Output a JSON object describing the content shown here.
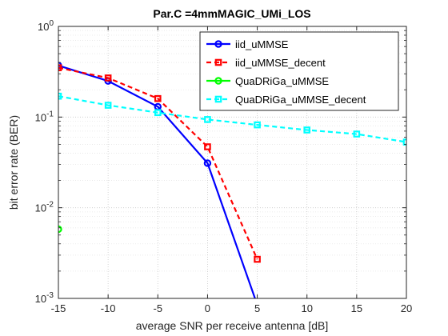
{
  "chart_data": {
    "type": "line",
    "title": "Par.C =4mmMAGIC_UMi_LOS",
    "xlabel": "average SNR per receive antenna [dB]",
    "ylabel": "bit error rate (BER)",
    "xlim": [
      -15,
      20
    ],
    "ylim": [
      0.001,
      1
    ],
    "yscale": "log",
    "grid": "on (major and minor, dotted)",
    "legend_position": "top-right",
    "x_ticks": [
      -15,
      -10,
      -5,
      0,
      5,
      10,
      15,
      20
    ],
    "x_tick_labels": [
      "-15",
      "-10",
      "-5",
      "0",
      "5",
      "10",
      "15",
      "20"
    ],
    "y_ticks": [
      0.001,
      0.01,
      0.1,
      1
    ],
    "y_tick_labels": [
      {
        "base": "10",
        "exp": "-3"
      },
      {
        "base": "10",
        "exp": "-2"
      },
      {
        "base": "10",
        "exp": "-1"
      },
      {
        "base": "10",
        "exp": "0"
      }
    ],
    "series": [
      {
        "name": "iid_uMMSE",
        "color": "#0000ff",
        "line_style": "solid",
        "marker": "circle",
        "x": [
          -15,
          -10,
          -5,
          0,
          5
        ],
        "y": [
          0.37,
          0.25,
          0.13,
          0.031,
          0.00085
        ]
      },
      {
        "name": "iid_uMMSE_decent",
        "color": "#ff0000",
        "line_style": "dashed",
        "marker": "square",
        "x": [
          -15,
          -10,
          -5,
          0,
          5
        ],
        "y": [
          0.35,
          0.27,
          0.16,
          0.047,
          0.0027
        ]
      },
      {
        "name": "QuaDRiGa_uMMSE",
        "color": "#00ff00",
        "line_style": "solid",
        "marker": "circle",
        "x": [
          -15
        ],
        "y": [
          0.0058
        ]
      },
      {
        "name": "QuaDRiGa_uMMSE_decent",
        "color": "#00ffff",
        "line_style": "dashed",
        "marker": "square",
        "x": [
          -15,
          -10,
          -5,
          0,
          5,
          10,
          15,
          20
        ],
        "y": [
          0.17,
          0.135,
          0.112,
          0.094,
          0.082,
          0.072,
          0.065,
          0.053
        ]
      }
    ]
  }
}
